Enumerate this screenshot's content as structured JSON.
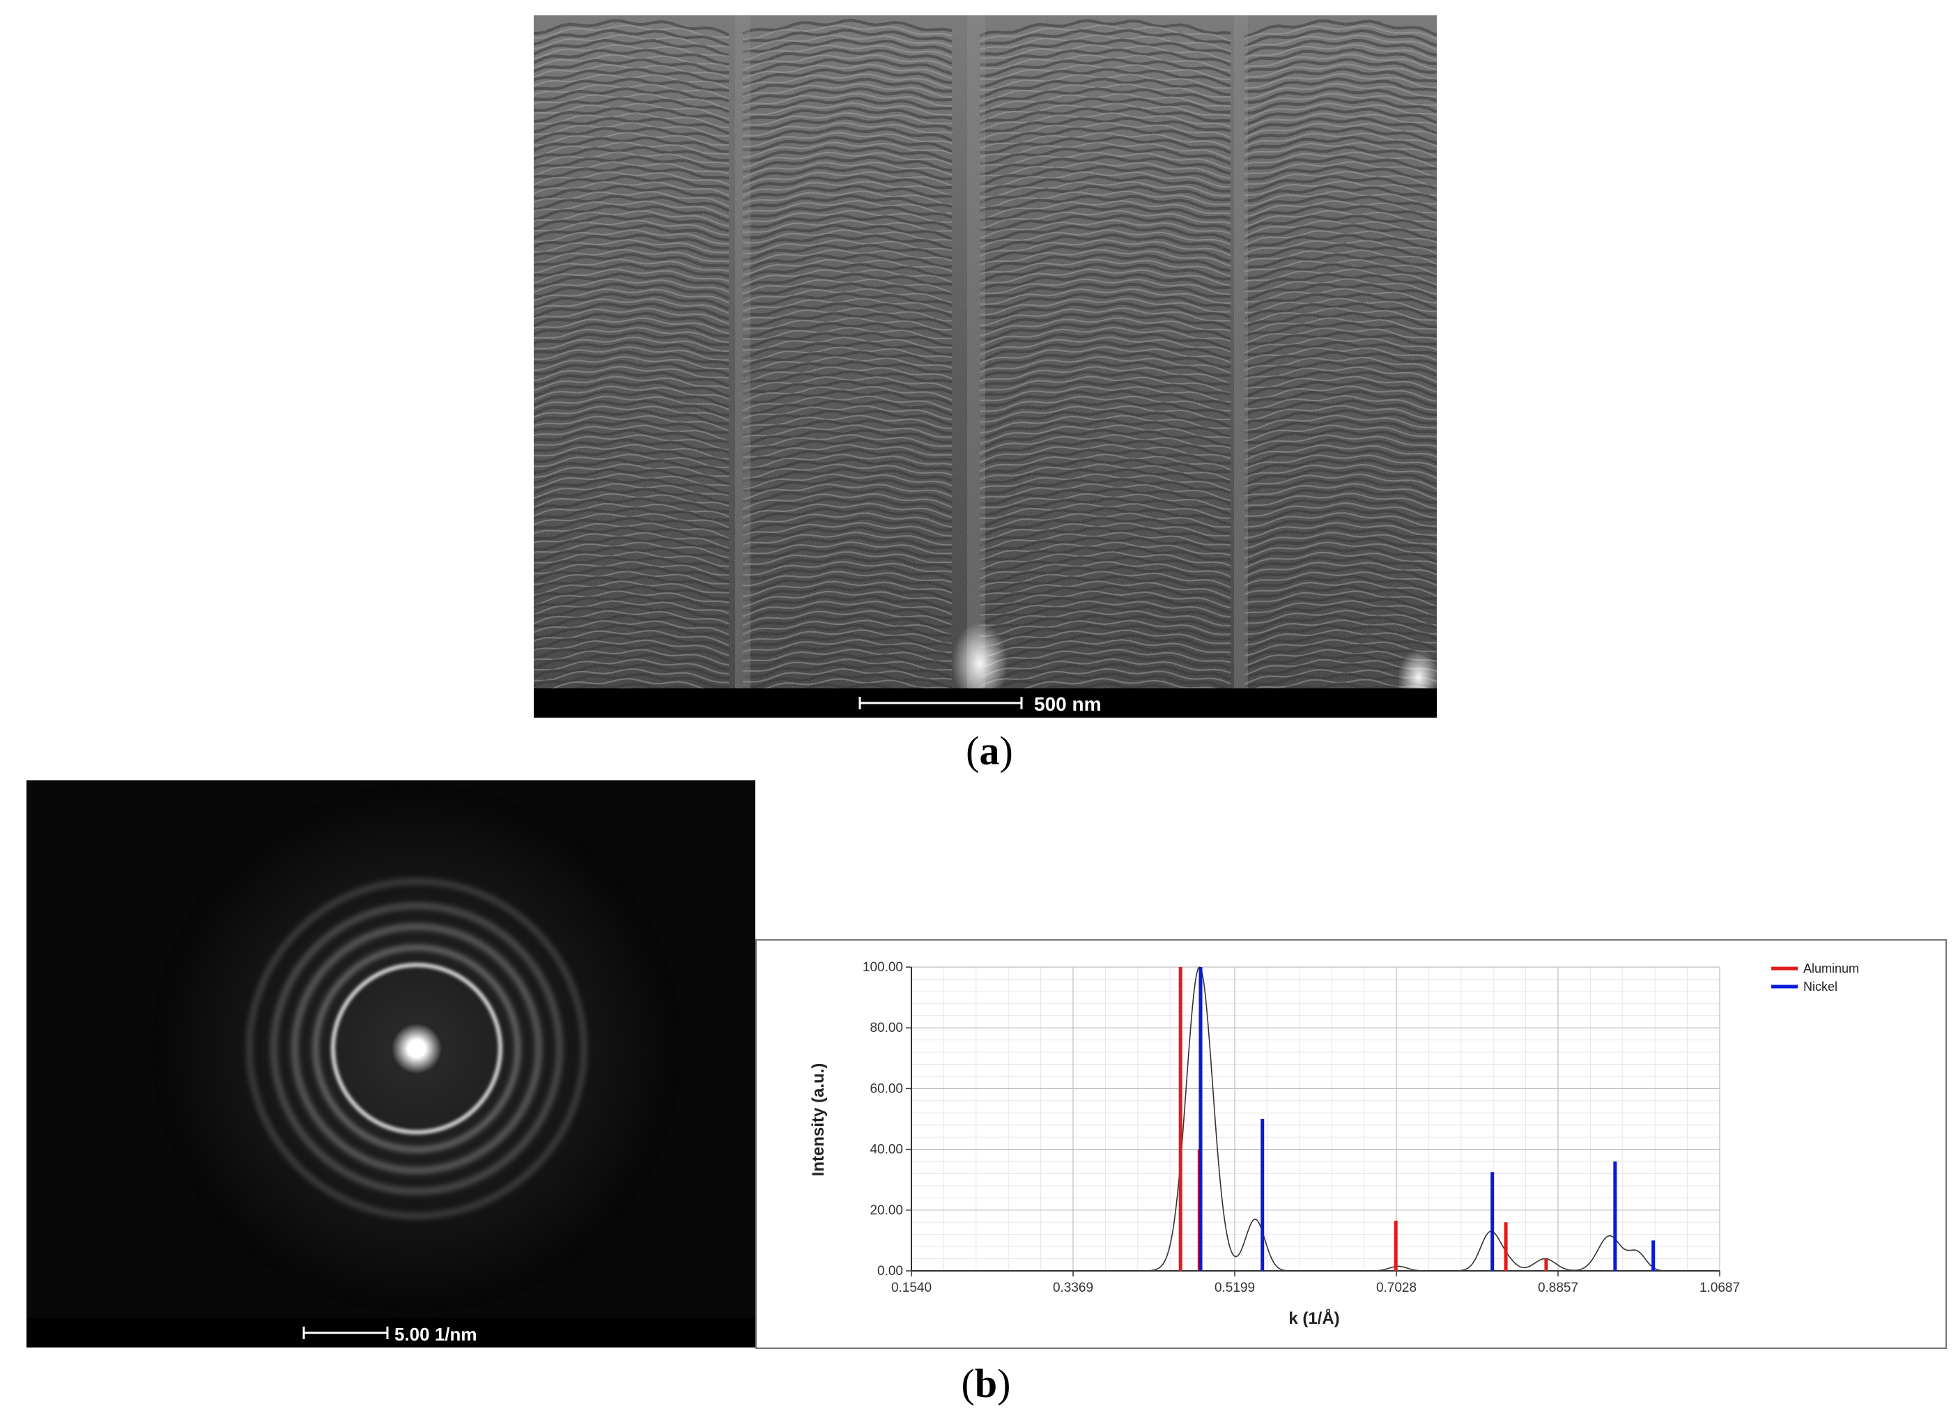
{
  "panel_a": {
    "label_open": "(",
    "label_letter": "a",
    "label_close": ")",
    "scale_bar_text": "500 nm"
  },
  "panel_b": {
    "label_open": "(",
    "label_letter": "b",
    "label_close": ")",
    "scale_bar_text": "5.00 1/nm"
  },
  "chart_data": {
    "type": "line",
    "title": "",
    "xlabel": "k (1/Å)",
    "ylabel": "Intensity (a.u.)",
    "xlim": [
      0.154,
      1.0687
    ],
    "ylim": [
      0,
      100
    ],
    "x_tick_labels": [
      "0.1540",
      "0.3369",
      "0.5199",
      "0.7028",
      "0.8857",
      "1.0687"
    ],
    "y_tick_labels": [
      "0.00",
      "20.00",
      "40.00",
      "60.00",
      "80.00",
      "100.00"
    ],
    "grid": true,
    "legend_position": "top-right",
    "profile": {
      "color": "#333333",
      "peaks": [
        {
          "k": 0.48,
          "intensity": 100,
          "width": 0.015
        },
        {
          "k": 0.543,
          "intensity": 17,
          "width": 0.011
        },
        {
          "k": 0.705,
          "intensity": 1.5,
          "width": 0.01
        },
        {
          "k": 0.809,
          "intensity": 12.5,
          "width": 0.011
        },
        {
          "k": 0.828,
          "intensity": 3,
          "width": 0.01
        },
        {
          "k": 0.871,
          "intensity": 4,
          "width": 0.012
        },
        {
          "k": 0.944,
          "intensity": 11.5,
          "width": 0.013
        },
        {
          "k": 0.975,
          "intensity": 6,
          "width": 0.01
        }
      ]
    },
    "series": [
      {
        "name": "Aluminum",
        "color": "#e31a1a",
        "points": [
          {
            "k": 0.4585,
            "intensity": 100
          },
          {
            "k": 0.4799,
            "intensity": 40
          },
          {
            "k": 0.7022,
            "intensity": 16.5
          },
          {
            "k": 0.8267,
            "intensity": 16
          },
          {
            "k": 0.8723,
            "intensity": 4
          },
          {
            "k": 0.9935,
            "intensity": 1
          }
        ]
      },
      {
        "name": "Nickel",
        "color": "#0a1ad9",
        "points": [
          {
            "k": 0.4812,
            "intensity": 100
          },
          {
            "k": 0.5512,
            "intensity": 50
          },
          {
            "k": 0.8114,
            "intensity": 32.5
          },
          {
            "k": 0.9503,
            "intensity": 36
          },
          {
            "k": 0.9935,
            "intensity": 10
          }
        ]
      }
    ]
  }
}
